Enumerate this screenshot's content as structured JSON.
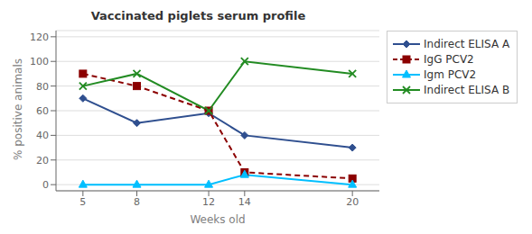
{
  "chart_data": {
    "type": "line",
    "title": "Vaccinated piglets serum profile",
    "xlabel": "Weeks old",
    "ylabel": "% positive animals",
    "x": [
      5,
      8,
      12,
      14,
      20
    ],
    "series": [
      {
        "name": "Indirect ELISA A",
        "color": "#2F4F8F",
        "values": [
          70,
          50,
          58,
          40,
          30
        ],
        "marker": "diamond",
        "line_style": "solid"
      },
      {
        "name": "IgG PCV2",
        "color": "#8B0000",
        "values": [
          90,
          80,
          60,
          10,
          5
        ],
        "marker": "square",
        "line_style": "dashed"
      },
      {
        "name": "Igm PCV2",
        "color": "#00BFFF",
        "values": [
          0,
          0,
          0,
          8,
          0
        ],
        "marker": "triangle",
        "line_style": "solid"
      },
      {
        "name": "Indirect ELISA B",
        "color": "#228B22",
        "values": [
          80,
          90,
          60,
          100,
          90
        ],
        "marker": "x",
        "line_style": "solid"
      }
    ],
    "xlim": [
      3.5,
      21.5
    ],
    "xticks": [
      5,
      8,
      12,
      14,
      20
    ],
    "ylim": [
      -5,
      125
    ],
    "yticks": [
      0,
      20,
      40,
      60,
      80,
      100,
      120
    ],
    "grid": "y",
    "legend": "right"
  }
}
